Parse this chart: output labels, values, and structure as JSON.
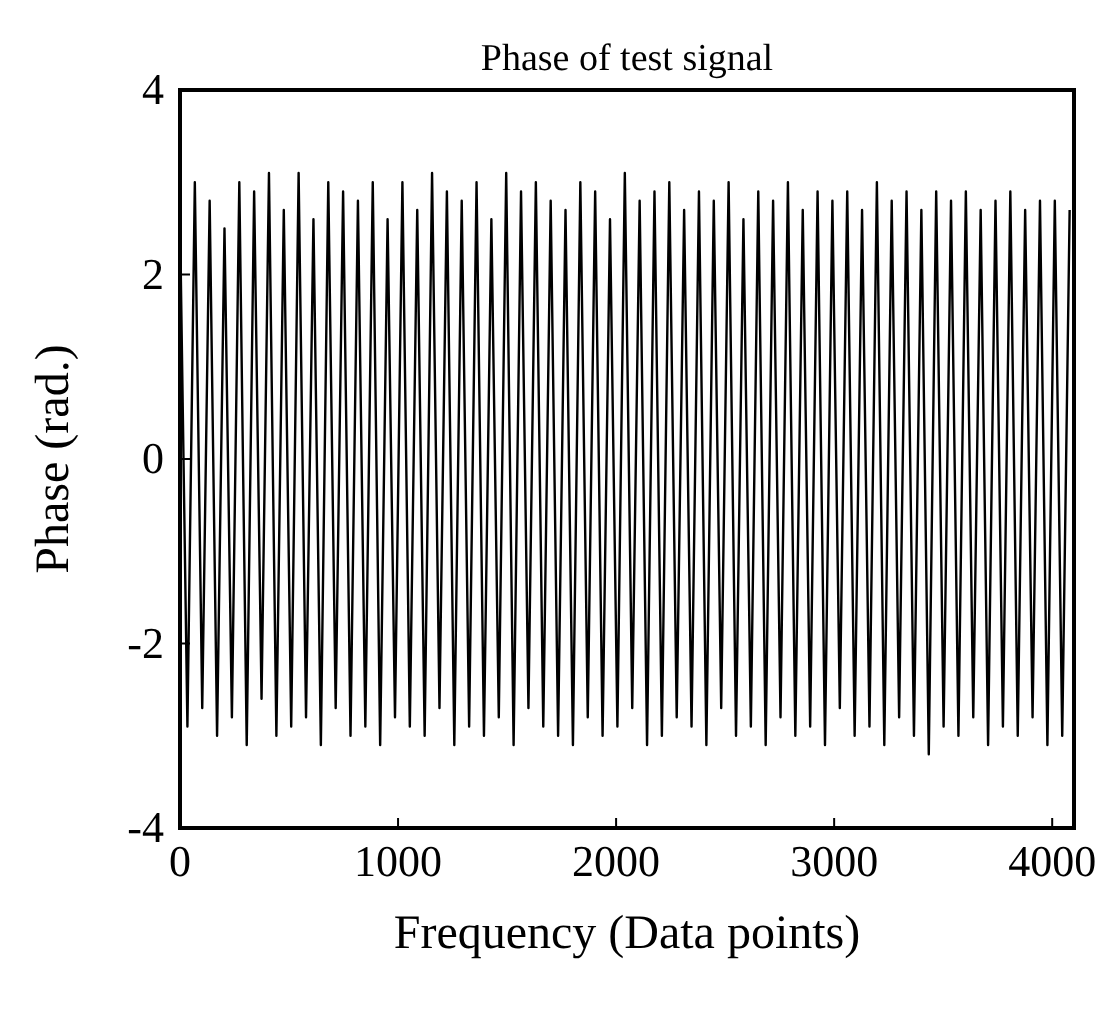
{
  "chart_data": {
    "type": "line",
    "title": "Phase of test signal",
    "xlabel": "Frequency (Data points)",
    "ylabel": "Phase (rad.)",
    "xlim": [
      0,
      4100
    ],
    "ylim": [
      -4,
      4
    ],
    "xticks": [
      0,
      1000,
      2000,
      3000,
      4000
    ],
    "yticks": [
      -4,
      -2,
      0,
      2,
      4
    ],
    "grid": false,
    "marker": "none",
    "line_style": "solid",
    "series": [
      {
        "color": "#000000",
        "x": [
          0,
          34,
          68,
          102,
          136,
          170,
          204,
          238,
          272,
          306,
          340,
          374,
          408,
          442,
          476,
          510,
          544,
          578,
          612,
          646,
          680,
          714,
          748,
          782,
          816,
          850,
          884,
          918,
          952,
          986,
          1020,
          1054,
          1088,
          1122,
          1156,
          1190,
          1224,
          1258,
          1292,
          1326,
          1360,
          1394,
          1428,
          1462,
          1496,
          1530,
          1564,
          1598,
          1632,
          1666,
          1700,
          1734,
          1768,
          1802,
          1836,
          1870,
          1904,
          1938,
          1972,
          2006,
          2040,
          2074,
          2108,
          2142,
          2176,
          2210,
          2244,
          2278,
          2312,
          2346,
          2380,
          2414,
          2448,
          2482,
          2516,
          2550,
          2584,
          2618,
          2652,
          2686,
          2720,
          2754,
          2788,
          2822,
          2856,
          2890,
          2924,
          2958,
          2992,
          3026,
          3060,
          3094,
          3128,
          3162,
          3196,
          3230,
          3264,
          3298,
          3332,
          3366,
          3400,
          3434,
          3468,
          3502,
          3536,
          3570,
          3604,
          3638,
          3672,
          3706,
          3740,
          3774,
          3808,
          3842,
          3876,
          3910,
          3944,
          3978,
          4012,
          4046,
          4080
        ],
        "values": [
          2.6,
          -2.9,
          3.0,
          -2.7,
          2.8,
          -3.0,
          2.5,
          -2.8,
          3.0,
          -3.1,
          2.9,
          -2.6,
          3.1,
          -3.0,
          2.7,
          -2.9,
          3.1,
          -2.8,
          2.6,
          -3.1,
          3.0,
          -2.7,
          2.9,
          -3.0,
          2.8,
          -2.9,
          3.0,
          -3.1,
          2.6,
          -2.8,
          3.0,
          -2.9,
          2.7,
          -3.0,
          3.1,
          -2.7,
          2.9,
          -3.1,
          2.8,
          -2.9,
          3.0,
          -3.0,
          2.6,
          -2.8,
          3.1,
          -3.1,
          2.9,
          -2.7,
          3.0,
          -2.9,
          2.8,
          -3.0,
          2.7,
          -3.1,
          3.0,
          -2.8,
          2.9,
          -3.0,
          2.6,
          -2.9,
          3.1,
          -2.7,
          2.8,
          -3.1,
          2.9,
          -3.0,
          3.0,
          -2.8,
          2.7,
          -2.9,
          2.9,
          -3.1,
          2.8,
          -2.7,
          3.0,
          -3.0,
          2.6,
          -2.9,
          2.9,
          -3.1,
          2.8,
          -2.8,
          3.0,
          -3.0,
          2.7,
          -2.9,
          2.9,
          -3.1,
          2.8,
          -2.7,
          2.9,
          -3.0,
          2.7,
          -2.9,
          3.0,
          -3.1,
          2.8,
          -2.8,
          2.9,
          -3.0,
          2.7,
          -3.2,
          2.9,
          -2.9,
          2.8,
          -3.0,
          2.9,
          -2.8,
          2.7,
          -3.1,
          2.8,
          -2.9,
          2.9,
          -3.0,
          2.7,
          -2.8,
          2.8,
          -3.1,
          2.8,
          -3.0,
          2.7
        ]
      }
    ]
  }
}
